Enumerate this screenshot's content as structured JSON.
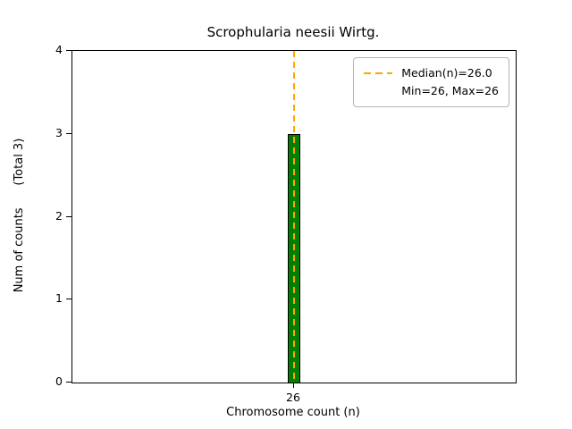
{
  "chart_data": {
    "type": "bar",
    "title": "Scrophularia neesii Wirtg.",
    "xlabel": "Chromosome count (n)",
    "ylabel": "Num of counts      (Total 3)",
    "categories": [
      "26"
    ],
    "values": [
      3
    ],
    "total_counts": 3,
    "ylim": [
      0,
      4
    ],
    "yticks": [
      0,
      1,
      2,
      3,
      4
    ],
    "grid": false,
    "bar_color": "#008000",
    "bar_edge_color": "#000000",
    "median": {
      "value": "26.0",
      "line_color": "#ffa500",
      "line_style": "dashed"
    },
    "legend": {
      "position": "upper right",
      "entries": [
        "Median(n)=26.0",
        "Min=26, Max=26"
      ]
    }
  }
}
